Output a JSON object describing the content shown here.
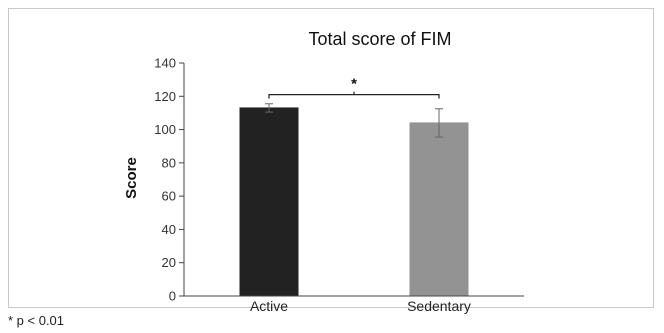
{
  "chart_data": {
    "type": "bar",
    "title": "Total score of FIM",
    "ylabel": "Score",
    "xlabel": "",
    "categories": [
      "Active",
      "Sedentary"
    ],
    "values": [
      113,
      104
    ],
    "errors": [
      2.5,
      8.5
    ],
    "colors": [
      "#222222",
      "#939393"
    ],
    "ylim": [
      0,
      140
    ],
    "yticks": [
      0,
      20,
      40,
      60,
      80,
      100,
      120,
      140
    ],
    "grid": false,
    "legend": "none",
    "significance": {
      "label": "*",
      "between": [
        0,
        1
      ],
      "at_value": 121
    }
  },
  "footnote": "* p < 0.01"
}
